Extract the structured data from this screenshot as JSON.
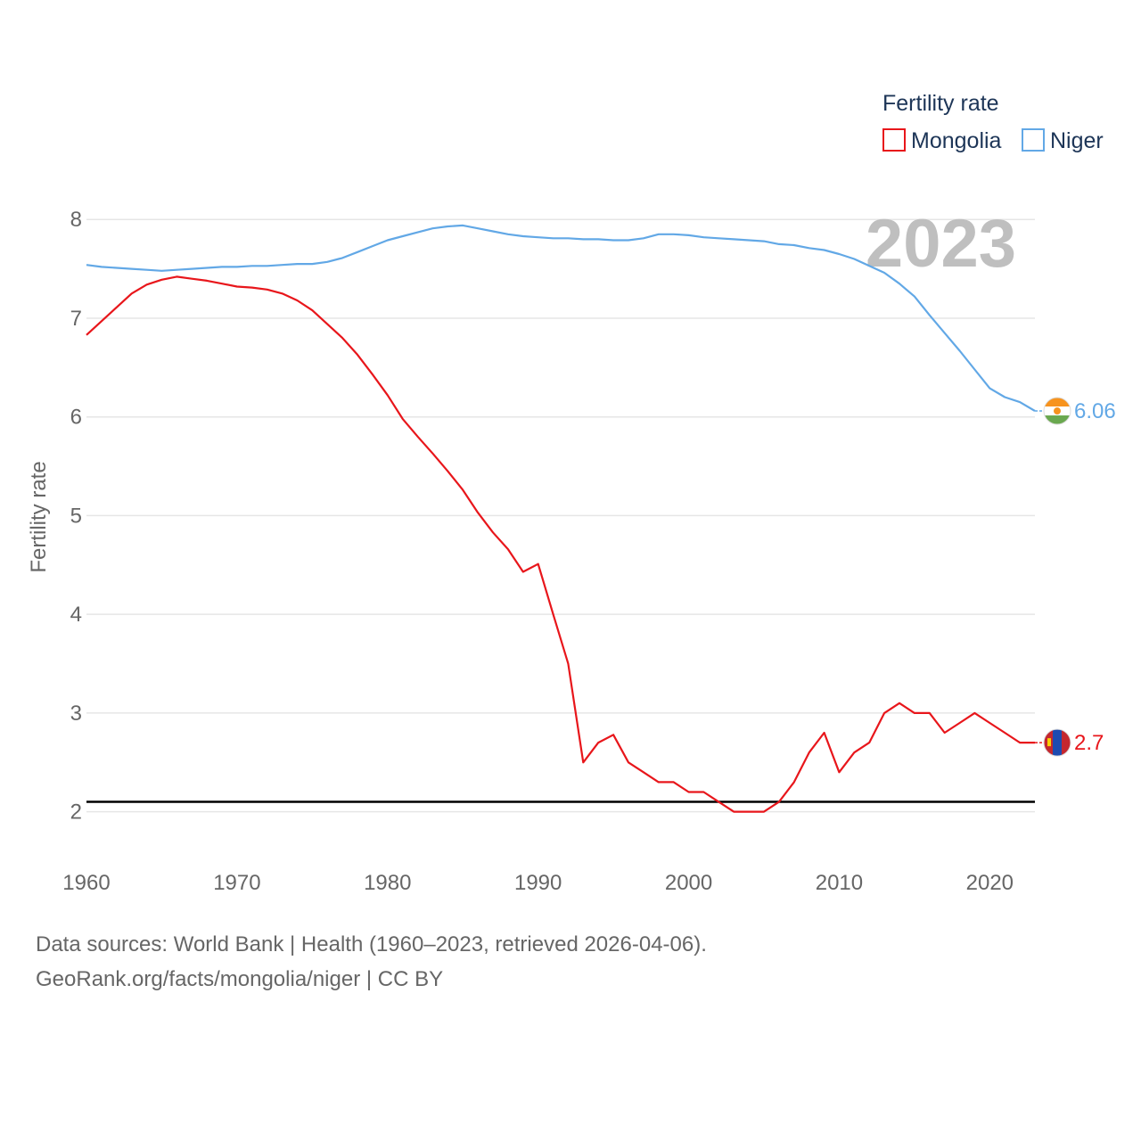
{
  "chart_data": {
    "type": "line",
    "title": "",
    "legend_title": "Fertility rate",
    "ylabel": "Fertility rate",
    "xlabel": "",
    "year_label": "2023",
    "xlim": [
      1960,
      2023
    ],
    "ylim": [
      1.5,
      8.3
    ],
    "x_ticks": [
      1960,
      1970,
      1980,
      1990,
      2000,
      2010,
      2020
    ],
    "y_ticks": [
      2,
      3,
      4,
      5,
      6,
      7,
      8
    ],
    "reference_line": {
      "value": 2.1,
      "color": "#000000"
    },
    "x": [
      1960,
      1961,
      1962,
      1963,
      1964,
      1965,
      1966,
      1967,
      1968,
      1969,
      1970,
      1971,
      1972,
      1973,
      1974,
      1975,
      1976,
      1977,
      1978,
      1979,
      1980,
      1981,
      1982,
      1983,
      1984,
      1985,
      1986,
      1987,
      1988,
      1989,
      1990,
      1991,
      1992,
      1993,
      1994,
      1995,
      1996,
      1997,
      1998,
      1999,
      2000,
      2001,
      2002,
      2003,
      2004,
      2005,
      2006,
      2007,
      2008,
      2009,
      2010,
      2011,
      2012,
      2013,
      2014,
      2015,
      2016,
      2017,
      2018,
      2019,
      2020,
      2021,
      2022,
      2023
    ],
    "series": [
      {
        "name": "Mongolia",
        "color": "#e8161b",
        "flag": "mongolia-flag",
        "end_label": "2.7",
        "values": [
          6.83,
          6.97,
          7.11,
          7.25,
          7.34,
          7.39,
          7.42,
          7.4,
          7.38,
          7.35,
          7.32,
          7.31,
          7.29,
          7.25,
          7.18,
          7.08,
          6.94,
          6.8,
          6.63,
          6.43,
          6.22,
          5.98,
          5.8,
          5.63,
          5.45,
          5.26,
          5.03,
          4.83,
          4.66,
          4.43,
          4.51,
          4.0,
          3.5,
          2.5,
          2.7,
          2.78,
          2.5,
          2.4,
          2.3,
          2.3,
          2.2,
          2.2,
          2.1,
          2.0,
          2.0,
          2.0,
          2.1,
          2.3,
          2.6,
          2.8,
          2.4,
          2.6,
          2.7,
          3.0,
          3.1,
          3.0,
          3.0,
          2.8,
          2.9,
          3.0,
          2.9,
          2.8,
          2.7,
          2.7
        ]
      },
      {
        "name": "Niger",
        "color": "#62a8e6",
        "flag": "niger-flag",
        "end_label": "6.06",
        "values": [
          7.54,
          7.52,
          7.51,
          7.5,
          7.49,
          7.48,
          7.49,
          7.5,
          7.51,
          7.52,
          7.52,
          7.53,
          7.53,
          7.54,
          7.55,
          7.55,
          7.57,
          7.61,
          7.67,
          7.73,
          7.79,
          7.83,
          7.87,
          7.91,
          7.93,
          7.94,
          7.91,
          7.88,
          7.85,
          7.83,
          7.82,
          7.81,
          7.81,
          7.8,
          7.8,
          7.79,
          7.79,
          7.81,
          7.85,
          7.85,
          7.84,
          7.82,
          7.81,
          7.8,
          7.79,
          7.78,
          7.75,
          7.74,
          7.71,
          7.69,
          7.65,
          7.6,
          7.53,
          7.46,
          7.35,
          7.22,
          7.03,
          6.85,
          6.67,
          6.48,
          6.29,
          6.2,
          6.15,
          6.06
        ]
      }
    ]
  },
  "footer": {
    "line1": "Data sources: World Bank | Health (1960–2023, retrieved 2026-04-06).",
    "line2": "GeoRank.org/facts/mongolia/niger | CC BY"
  }
}
